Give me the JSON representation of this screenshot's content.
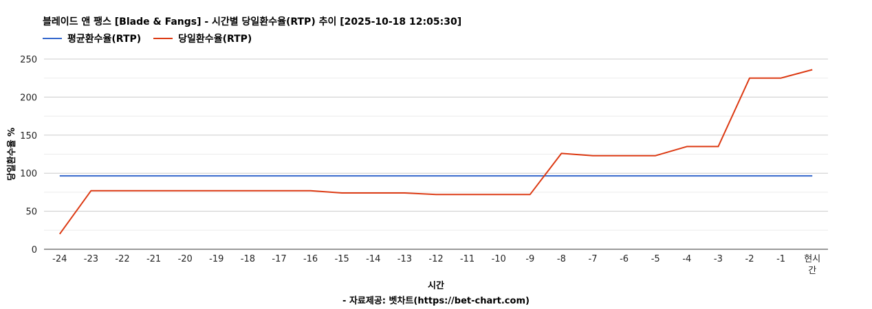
{
  "chart_data": {
    "type": "line",
    "title": "블레이드 앤 팽스 [Blade & Fangs] - 시간별 당일환수율(RTP) 추이 [2025-10-18 12:05:30]",
    "xlabel": "시간",
    "ylabel": "당일환수율 %",
    "source": "- 자료제공: 벳차트(https://bet-chart.com)",
    "categories": [
      "-24",
      "-23",
      "-22",
      "-21",
      "-20",
      "-19",
      "-18",
      "-17",
      "-16",
      "-15",
      "-14",
      "-13",
      "-12",
      "-11",
      "-10",
      "-9",
      "-8",
      "-7",
      "-6",
      "-5",
      "-4",
      "-3",
      "-2",
      "-1",
      "현시간"
    ],
    "ylim": [
      0,
      250
    ],
    "yticks": [
      0,
      50,
      100,
      150,
      200,
      250
    ],
    "grid": true,
    "legend_position": "top-left",
    "series": [
      {
        "name": "평균환수율(RTP)",
        "color": "#3366cc",
        "values": [
          96.5,
          96.5,
          96.5,
          96.5,
          96.5,
          96.5,
          96.5,
          96.5,
          96.5,
          96.5,
          96.5,
          96.5,
          96.5,
          96.5,
          96.5,
          96.5,
          96.5,
          96.5,
          96.5,
          96.5,
          96.5,
          96.5,
          96.5,
          96.5,
          96.5
        ]
      },
      {
        "name": "당일환수율(RTP)",
        "color": "#dc3912",
        "values": [
          20,
          77,
          77,
          77,
          77,
          77,
          77,
          77,
          77,
          74,
          74,
          74,
          72,
          72,
          72,
          72,
          126,
          123,
          123,
          123,
          135,
          135,
          225,
          225,
          236
        ]
      }
    ]
  }
}
